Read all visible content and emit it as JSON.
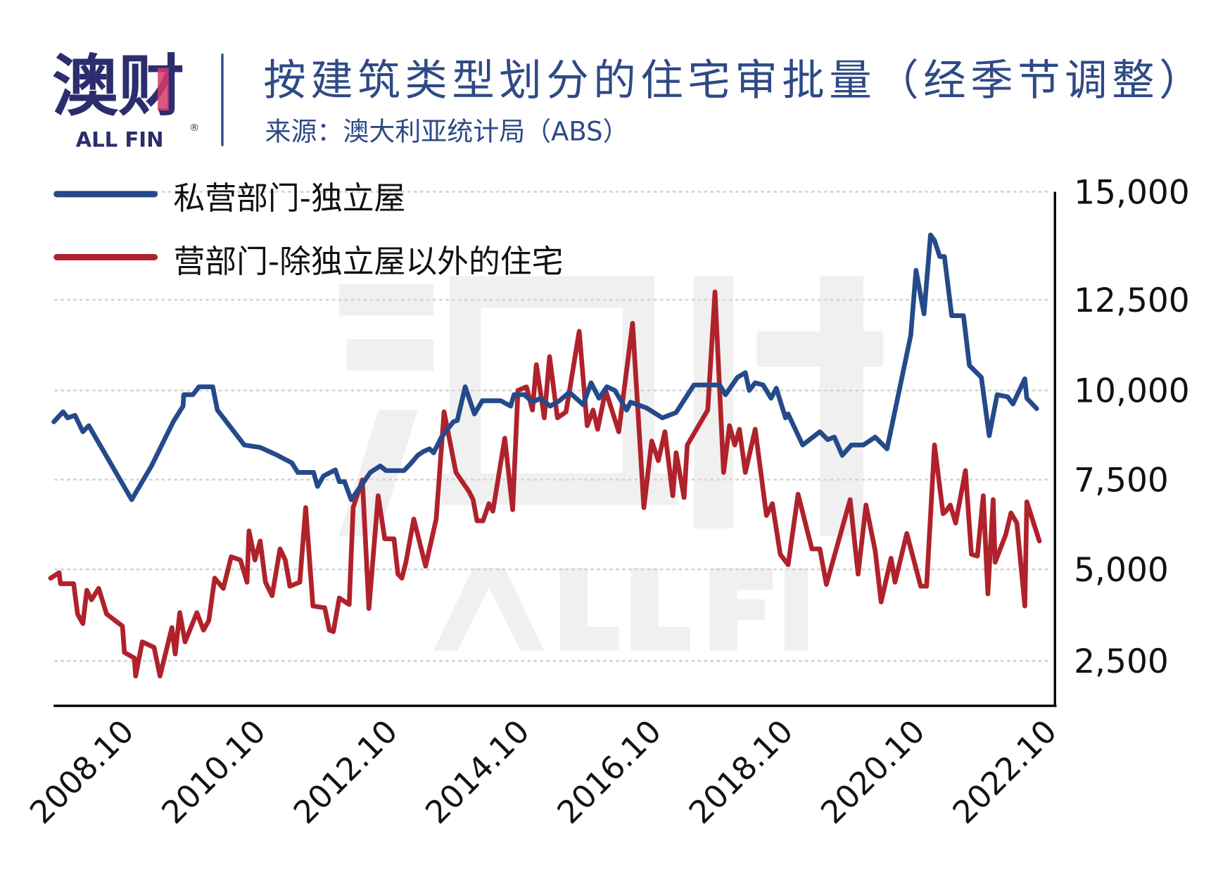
{
  "header": {
    "logo_text": "澳财",
    "logo_subtext": "ALL FIN",
    "logo_registered": "®",
    "title": "按建筑类型划分的住宅审批量（经季节调整）",
    "subtitle": "来源：澳大利亚统计局（ABS）"
  },
  "watermark": {
    "text": "澳财",
    "subtext": "ALL FIN"
  },
  "colors": {
    "series_blue": "#254a8a",
    "series_red": "#b0222b",
    "title": "#2e4a86",
    "logo": "#2b2d6e",
    "logo_accent": "#d63a6e"
  },
  "chart_data": {
    "type": "line",
    "title": "按建筑类型划分的住宅审批量（经季节调整）",
    "xlabel": "",
    "ylabel": "",
    "x_unit": "decimal year",
    "x_ticks": [
      "2008.10",
      "2010.10",
      "2012.10",
      "2014.10",
      "2016.10",
      "2018.10",
      "2020.10",
      "2022.10"
    ],
    "y_ticks": [
      2500,
      5000,
      7500,
      10000,
      12500,
      15000
    ],
    "y_tick_labels": [
      "2,500",
      "5,000",
      "7,500",
      "10,000",
      "12,500",
      "15,000"
    ],
    "ylim": [
      1250,
      15000
    ],
    "grid": "horizontal dotted",
    "legend_position": "top-left",
    "y_axis_side": "right",
    "series": [
      {
        "name": "私营部门-独立屋",
        "color": "#254a8a",
        "x": [
          2007.51,
          2007.65,
          2007.72,
          2007.83,
          2007.95,
          2008.04,
          2008.69,
          2008.99,
          2009.32,
          2009.47,
          2009.48,
          2009.62,
          2009.71,
          2009.92,
          2009.99,
          2010.4,
          2010.64,
          2010.88,
          2011.12,
          2011.21,
          2011.45,
          2011.51,
          2011.6,
          2011.78,
          2011.84,
          2011.92,
          2012.02,
          2012.19,
          2012.31,
          2012.46,
          2012.55,
          2012.82,
          2012.91,
          2013.03,
          2013.12,
          2013.21,
          2013.27,
          2013.39,
          2013.57,
          2013.63,
          2013.75,
          2013.89,
          2014.01,
          2014.29,
          2014.44,
          2014.49,
          2014.65,
          2014.77,
          2014.89,
          2015.04,
          2015.18,
          2015.33,
          2015.54,
          2015.66,
          2015.78,
          2015.9,
          2016.02,
          2016.2,
          2016.26,
          2016.5,
          2016.74,
          2016.95,
          2017.22,
          2017.61,
          2017.7,
          2017.88,
          2018.0,
          2018.06,
          2018.15,
          2018.27,
          2018.39,
          2018.47,
          2018.61,
          2018.65,
          2018.87,
          2019.13,
          2019.25,
          2019.35,
          2019.47,
          2019.61,
          2019.79,
          2019.97,
          2020.15,
          2020.51,
          2020.59,
          2020.71,
          2020.81,
          2020.87,
          2020.95,
          2021.02,
          2021.13,
          2021.31,
          2021.4,
          2021.58,
          2021.7,
          2021.82,
          2021.98,
          2022.06,
          2022.24,
          2022.27,
          2022.42
        ],
        "values": [
          9120,
          9400,
          9230,
          9300,
          8840,
          9010,
          6940,
          7880,
          9120,
          9560,
          9880,
          9880,
          10100,
          10100,
          9450,
          8470,
          8400,
          8200,
          7970,
          7700,
          7700,
          7310,
          7600,
          7770,
          7440,
          7440,
          6940,
          7380,
          7700,
          7880,
          7750,
          7750,
          7920,
          8180,
          8290,
          8360,
          8250,
          8690,
          9120,
          9160,
          10100,
          9340,
          9710,
          9710,
          9560,
          9880,
          9880,
          9670,
          9780,
          9560,
          9710,
          9950,
          9600,
          10210,
          9780,
          10100,
          10000,
          9450,
          9670,
          9510,
          9230,
          9380,
          10150,
          10150,
          9880,
          10360,
          10490,
          10000,
          10210,
          10150,
          9780,
          10060,
          9230,
          9340,
          8470,
          8840,
          8620,
          8690,
          8180,
          8470,
          8470,
          8690,
          8360,
          11520,
          13180,
          12110,
          14000,
          13870,
          13500,
          13500,
          12060,
          12060,
          10690,
          10360,
          8730,
          9880,
          9820,
          9620,
          10320,
          9780,
          9490
        ]
      },
      {
        "name": "营部门-除独立屋以外的住宅",
        "color": "#b0222b",
        "x": [
          2007.46,
          2007.59,
          2007.61,
          2007.81,
          2007.87,
          2007.95,
          2008.01,
          2008.08,
          2008.19,
          2008.31,
          2008.55,
          2008.58,
          2008.73,
          2008.75,
          2008.85,
          2009.03,
          2009.12,
          2009.3,
          2009.35,
          2009.42,
          2009.5,
          2009.68,
          2009.78,
          2009.86,
          2009.95,
          2010.08,
          2010.2,
          2010.34,
          2010.44,
          2010.47,
          2010.56,
          2010.64,
          2010.72,
          2010.82,
          2010.94,
          2011.02,
          2011.09,
          2011.24,
          2011.33,
          2011.44,
          2011.62,
          2011.69,
          2011.75,
          2011.84,
          2011.99,
          2012.05,
          2012.19,
          2012.29,
          2012.43,
          2012.53,
          2012.67,
          2012.73,
          2012.79,
          2012.85,
          2012.97,
          2013.15,
          2013.31,
          2013.43,
          2013.61,
          2013.81,
          2013.87,
          2013.93,
          2014.02,
          2014.11,
          2014.17,
          2014.35,
          2014.47,
          2014.55,
          2014.68,
          2014.77,
          2014.83,
          2014.95,
          2015.03,
          2015.15,
          2015.28,
          2015.48,
          2015.6,
          2015.69,
          2015.76,
          2015.88,
          2016.08,
          2016.29,
          2016.46,
          2016.58,
          2016.68,
          2016.78,
          2016.9,
          2016.95,
          2017.07,
          2017.12,
          2017.43,
          2017.54,
          2017.67,
          2017.76,
          2017.84,
          2017.91,
          2018.0,
          2018.15,
          2018.32,
          2018.41,
          2018.53,
          2018.65,
          2018.8,
          2019.01,
          2019.13,
          2019.23,
          2019.59,
          2019.71,
          2019.83,
          2019.97,
          2020.06,
          2020.21,
          2020.27,
          2020.45,
          2020.66,
          2020.75,
          2020.87,
          2021.0,
          2021.04,
          2021.11,
          2021.19,
          2021.34,
          2021.43,
          2021.52,
          2021.61,
          2021.68,
          2021.76,
          2021.79,
          2021.95,
          2022.03,
          2022.12,
          2022.24,
          2022.27,
          2022.46
        ],
        "values": [
          4760,
          4910,
          4610,
          4610,
          3780,
          3520,
          4430,
          4170,
          4480,
          3780,
          3450,
          2730,
          2580,
          2080,
          3020,
          2870,
          2080,
          3410,
          2690,
          3820,
          3020,
          3820,
          3340,
          3600,
          4760,
          4480,
          5350,
          5260,
          4650,
          6070,
          5260,
          5790,
          4650,
          4280,
          5570,
          5260,
          4540,
          4650,
          6720,
          4000,
          3950,
          3340,
          3300,
          4220,
          4040,
          6720,
          7490,
          3930,
          7050,
          5850,
          5850,
          4870,
          4760,
          5200,
          6400,
          5090,
          6400,
          9400,
          7700,
          7160,
          6940,
          6350,
          6350,
          6830,
          6620,
          8660,
          6660,
          10000,
          10100,
          9450,
          10710,
          9230,
          10930,
          9230,
          9400,
          11630,
          9010,
          9450,
          8910,
          10000,
          8840,
          11850,
          6720,
          8580,
          8030,
          8840,
          7050,
          8250,
          7000,
          8470,
          9450,
          12680,
          7700,
          9010,
          8470,
          8910,
          7700,
          8910,
          6500,
          6830,
          5420,
          5130,
          7090,
          5570,
          5570,
          4590,
          6940,
          4870,
          6790,
          5520,
          4110,
          5310,
          4650,
          6000,
          4540,
          4540,
          8470,
          6550,
          6610,
          6790,
          6290,
          7750,
          5420,
          5370,
          7050,
          4330,
          6940,
          5200,
          5960,
          6570,
          6290,
          4000,
          6880,
          5790
        ]
      }
    ]
  }
}
